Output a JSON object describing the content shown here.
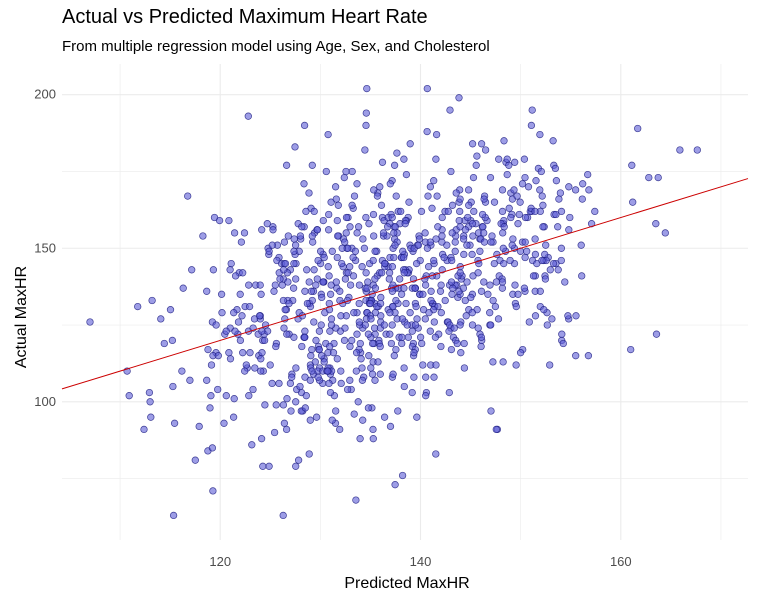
{
  "chart_data": {
    "type": "scatter",
    "title": "Actual vs Predicted Maximum Heart Rate",
    "subtitle": "From multiple regression model using Age, Sex, and Cholesterol",
    "xlabel": "Predicted MaxHR",
    "ylabel": "Actual MaxHR",
    "xlim": [
      104.2,
      172.7
    ],
    "ylim": [
      55,
      210
    ],
    "x_ticks": [
      120,
      140,
      160
    ],
    "y_ticks": [
      100,
      150,
      200
    ],
    "x_tick_labels": [
      "120",
      "140",
      "160"
    ],
    "y_tick_labels": [
      "100",
      "150",
      "200"
    ],
    "grid": true,
    "legend": "none",
    "colors": {
      "points_fill": "#5b5bd6",
      "points_stroke": "#1a1a80",
      "line": "#cc0000",
      "grid": "#ebebeb"
    },
    "reference_line": {
      "type": "identity",
      "from": [
        104.2,
        104.2
      ],
      "to": [
        172.7,
        172.7
      ]
    },
    "n_points": 918,
    "seed": 918
  }
}
